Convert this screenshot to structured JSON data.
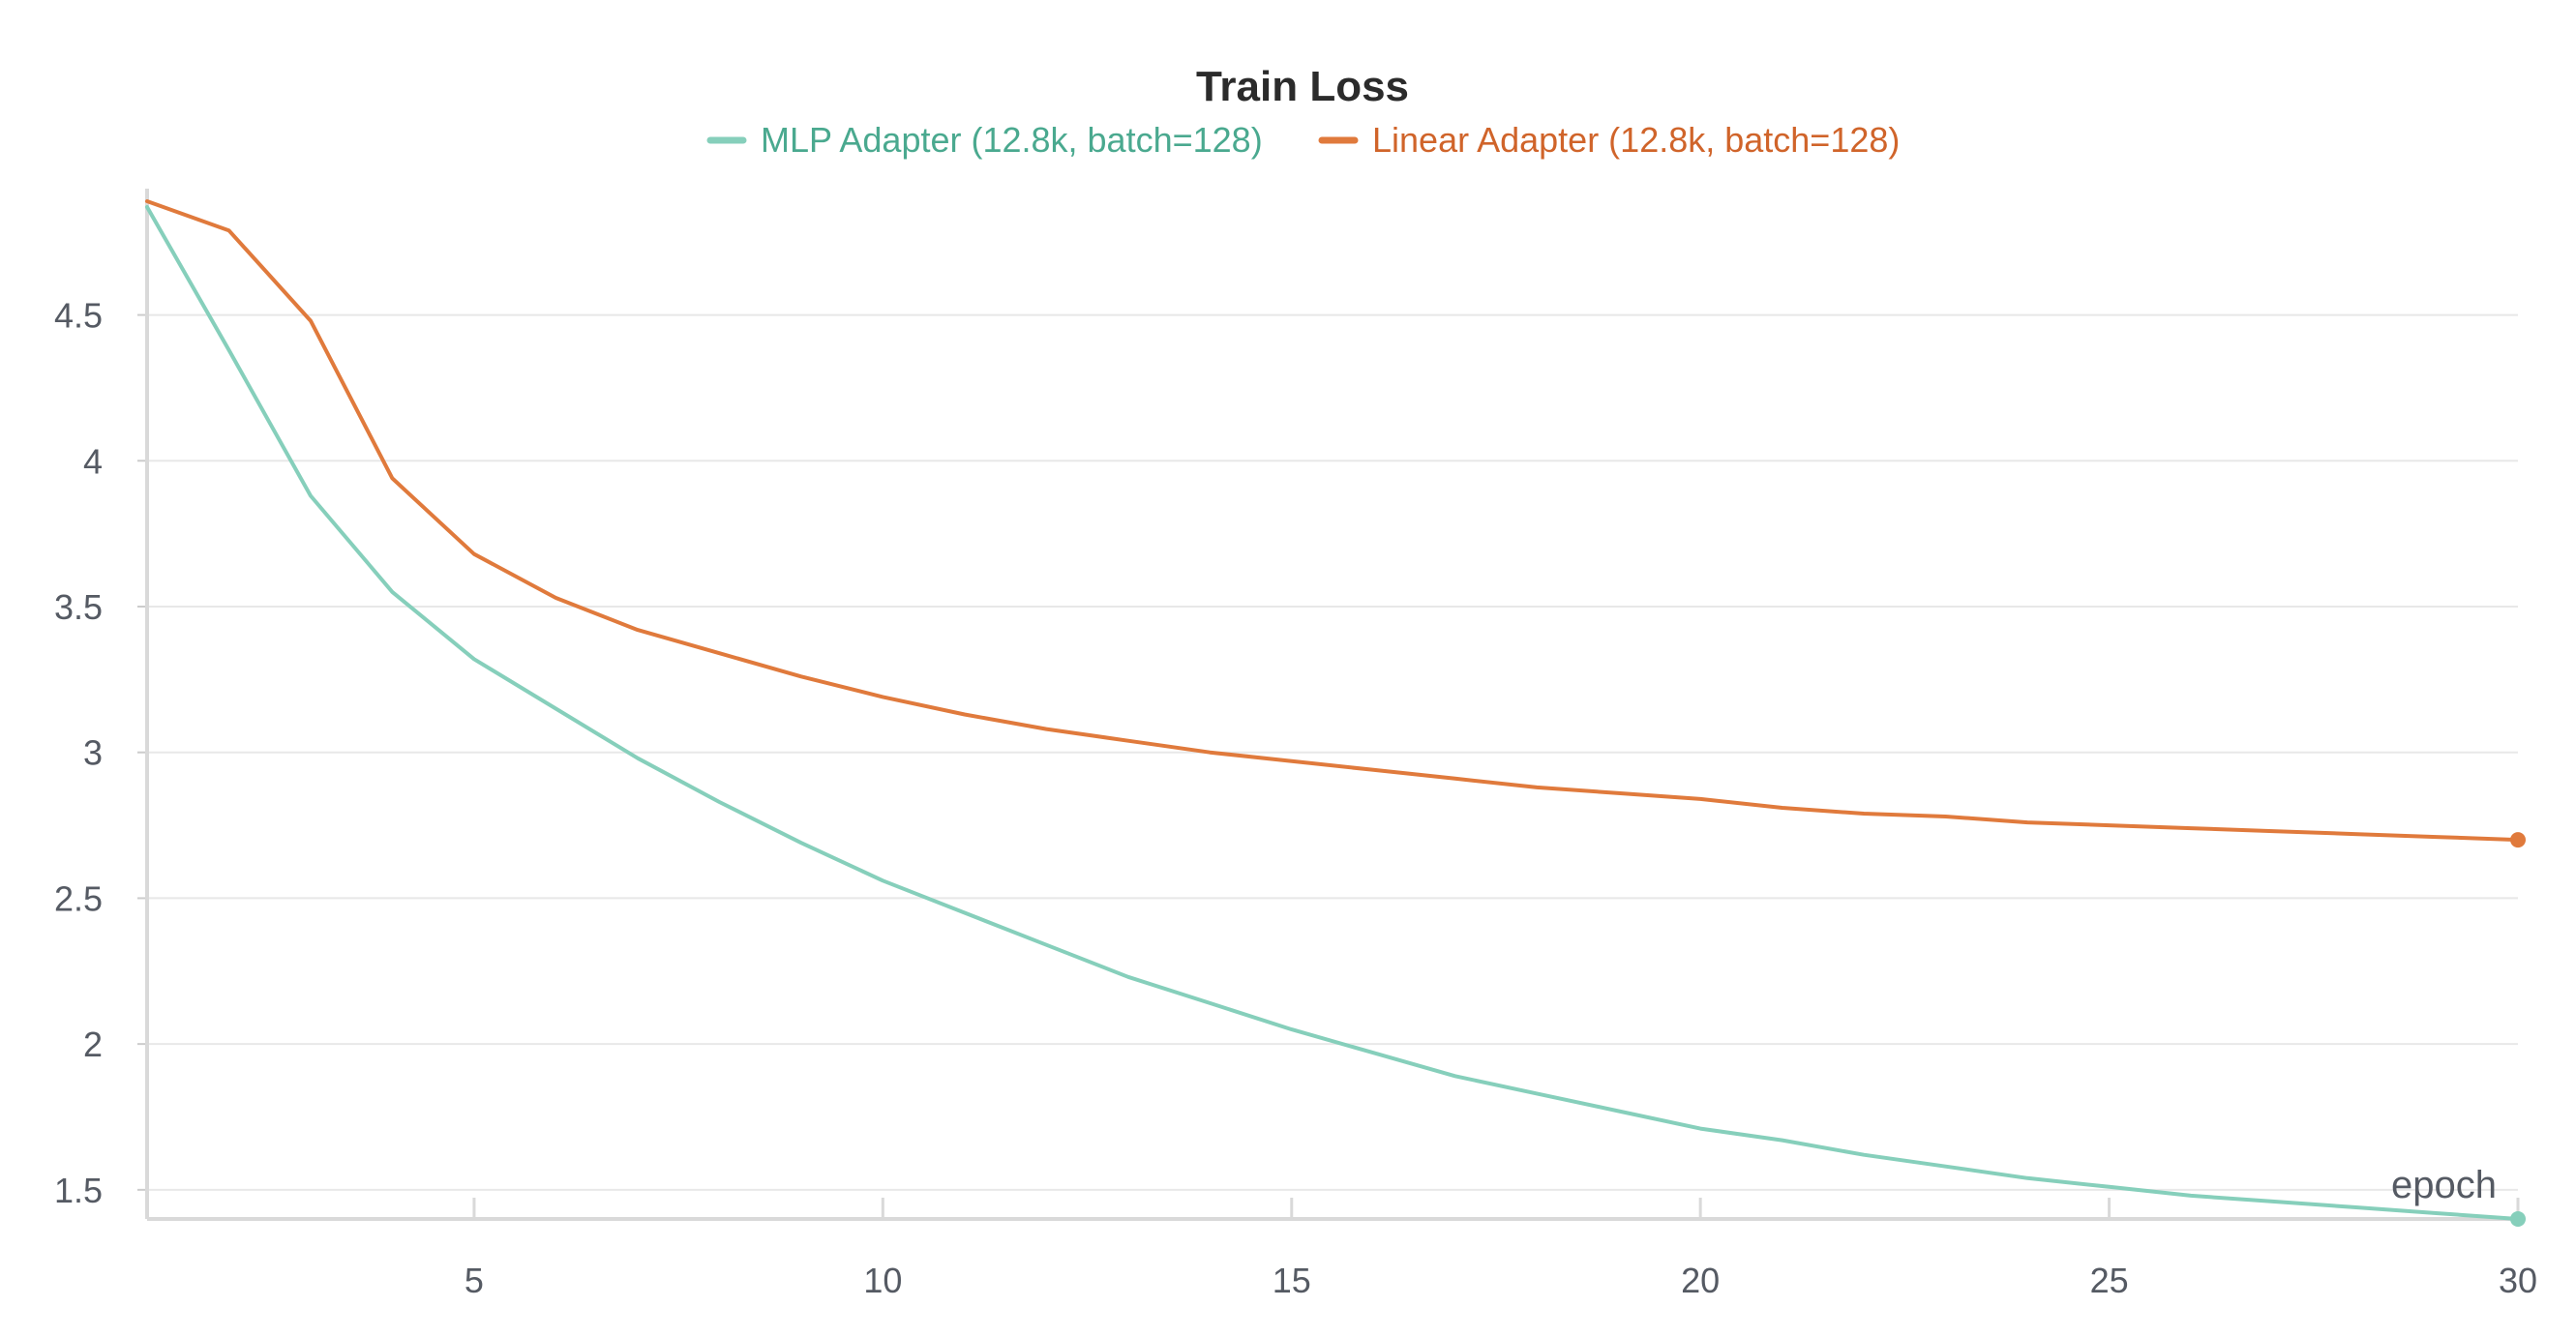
{
  "chart_data": {
    "type": "line",
    "title": "Train Loss",
    "xlabel": "epoch",
    "ylabel": "",
    "xlim": [
      1,
      30
    ],
    "ylim": [
      1.4,
      4.9
    ],
    "x_ticks": [
      5,
      10,
      15,
      20,
      25,
      30
    ],
    "y_ticks": [
      1.5,
      2,
      2.5,
      3,
      3.5,
      4,
      4.5
    ],
    "grid": true,
    "legend_position": "top-center",
    "x": [
      1,
      2,
      3,
      4,
      5,
      6,
      7,
      8,
      9,
      10,
      11,
      12,
      13,
      14,
      15,
      16,
      17,
      18,
      19,
      20,
      21,
      22,
      23,
      24,
      25,
      26,
      27,
      28,
      29,
      30
    ],
    "series": [
      {
        "name": "MLP Adapter (12.8k, batch=128)",
        "color": "#86cfbb",
        "legend_color": "#4aa98f",
        "values": [
          4.87,
          4.38,
          3.88,
          3.55,
          3.32,
          3.15,
          2.98,
          2.83,
          2.69,
          2.56,
          2.45,
          2.34,
          2.23,
          2.14,
          2.05,
          1.97,
          1.89,
          1.83,
          1.77,
          1.71,
          1.67,
          1.62,
          1.58,
          1.54,
          1.51,
          1.48,
          1.46,
          1.44,
          1.42,
          1.4
        ]
      },
      {
        "name": "Linear Adapter (12.8k, batch=128)",
        "color": "#e07a3c",
        "legend_color": "#d0642a",
        "values": [
          4.89,
          4.79,
          4.48,
          3.94,
          3.68,
          3.53,
          3.42,
          3.34,
          3.26,
          3.19,
          3.13,
          3.08,
          3.04,
          3.0,
          2.97,
          2.94,
          2.91,
          2.88,
          2.86,
          2.84,
          2.81,
          2.79,
          2.78,
          2.76,
          2.75,
          2.74,
          2.73,
          2.72,
          2.71,
          2.7
        ]
      }
    ]
  }
}
